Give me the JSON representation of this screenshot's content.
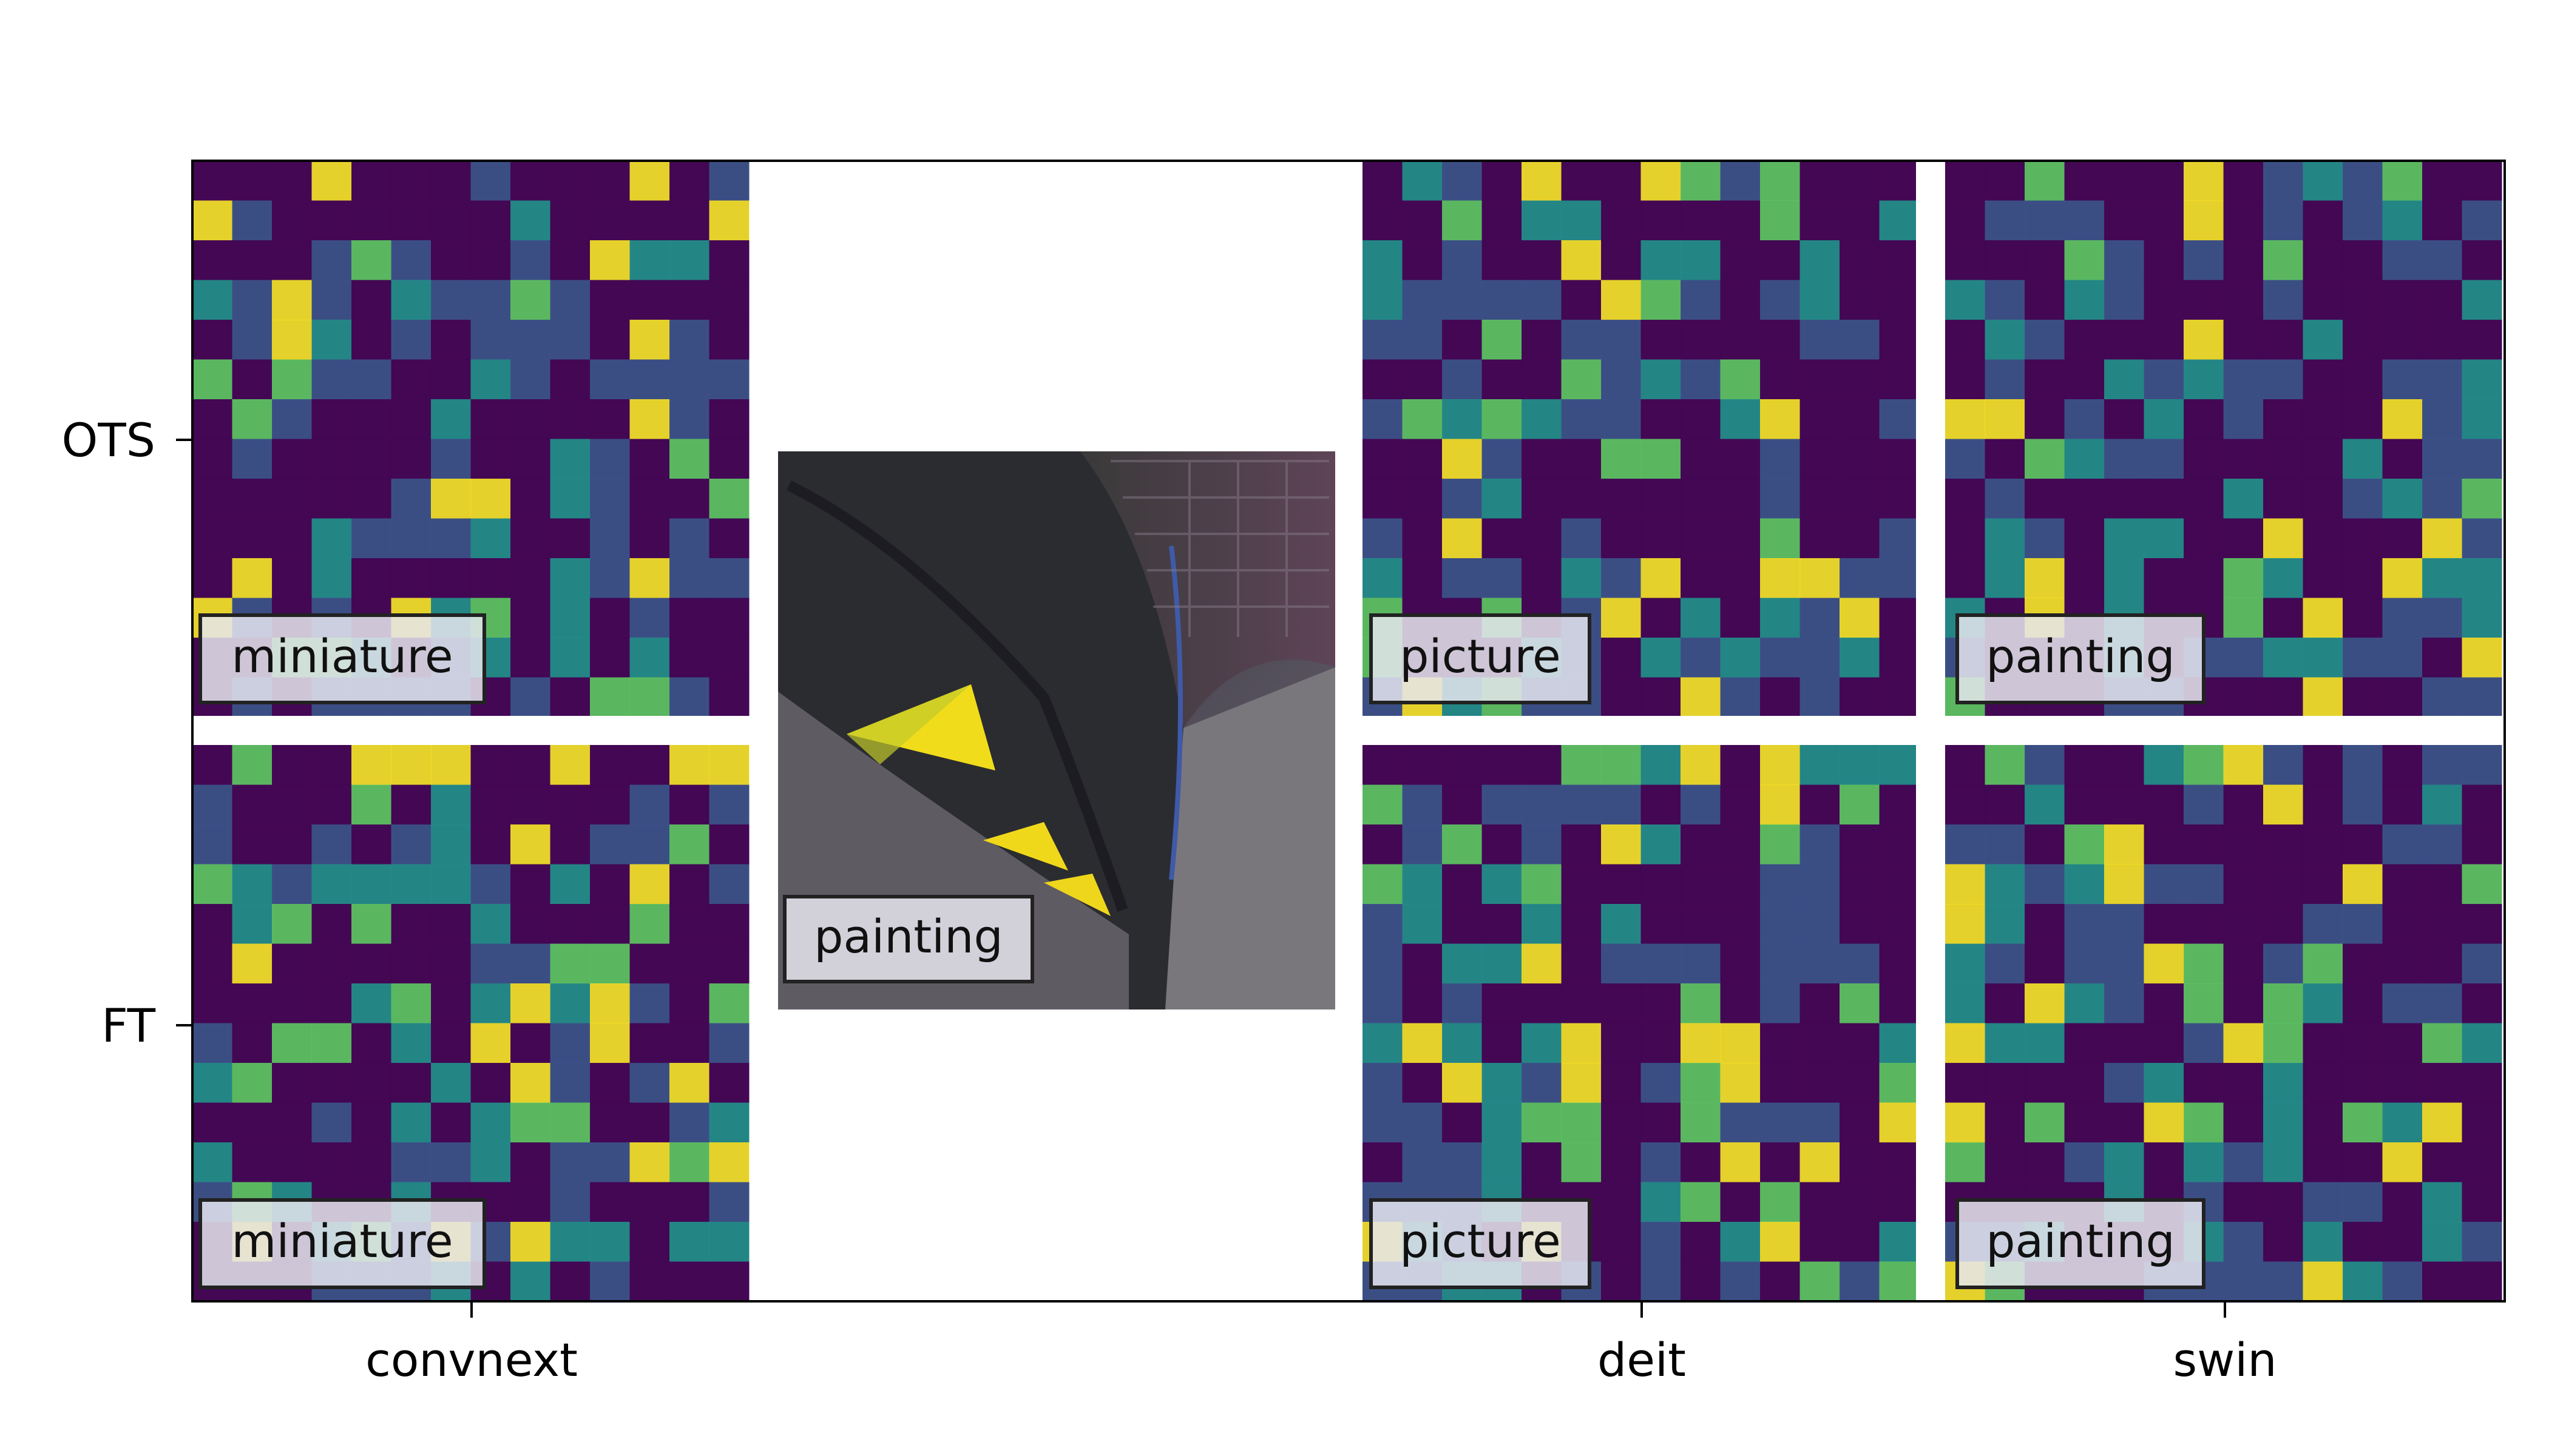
{
  "axes": {
    "row_labels": [
      "OTS",
      "FT"
    ],
    "column_labels": [
      "convnext",
      "deit",
      "swin"
    ]
  },
  "panels": [
    {
      "row": "OTS",
      "model": "convnext",
      "label": "miniature"
    },
    {
      "row": "OTS",
      "model": "deit",
      "label": "picture"
    },
    {
      "row": "OTS",
      "model": "swin",
      "label": "painting"
    },
    {
      "row": "FT",
      "model": "convnext",
      "label": "miniature"
    },
    {
      "row": "FT",
      "model": "deit",
      "label": "picture"
    },
    {
      "row": "FT",
      "model": "swin",
      "label": "painting"
    }
  ],
  "input_image": {
    "label": "painting"
  },
  "colors": {
    "colormap": [
      "#440154",
      "#3b528b",
      "#21918c",
      "#5ec962",
      "#fde725"
    ],
    "background_overlay": "#3a3550"
  }
}
